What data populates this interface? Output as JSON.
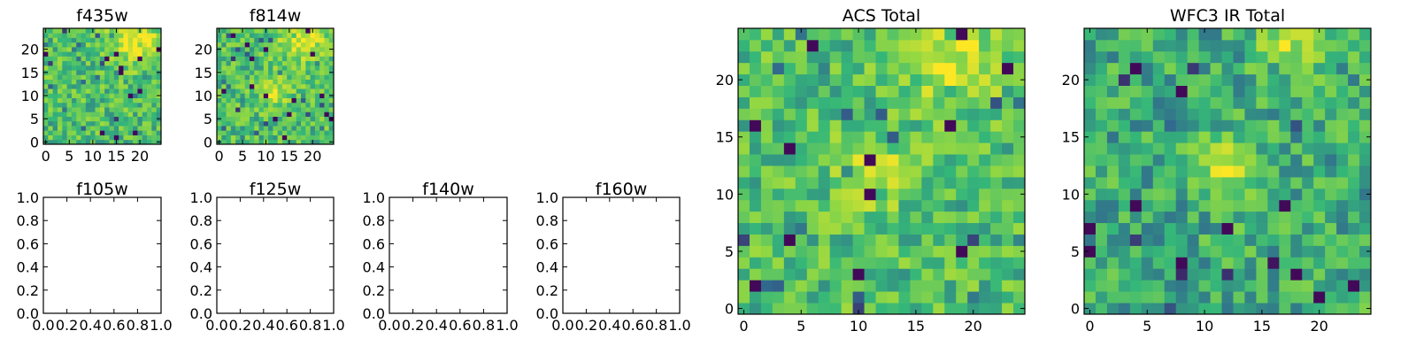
{
  "figure": {
    "colormap": [
      "#440154",
      "#31688e",
      "#35b779",
      "#90d743",
      "#fde725"
    ],
    "image_axes": {
      "f435w": {
        "title": "f435w",
        "xticks": [
          "0",
          "5",
          "10",
          "15",
          "20"
        ],
        "yticks": [
          "0",
          "5",
          "10",
          "15",
          "20"
        ]
      },
      "f814w": {
        "title": "f814w",
        "xticks": [
          "0",
          "5",
          "10",
          "15",
          "20"
        ],
        "yticks": [
          "0",
          "5",
          "10",
          "15",
          "20"
        ]
      },
      "acs_total": {
        "title": "ACS Total",
        "xticks": [
          "0",
          "5",
          "10",
          "15",
          "20"
        ],
        "yticks": [
          "0",
          "5",
          "10",
          "15",
          "20"
        ]
      },
      "wfc3_total": {
        "title": "WFC3 IR Total",
        "xticks": [
          "0",
          "5",
          "10",
          "15",
          "20"
        ],
        "yticks": [
          "0",
          "5",
          "10",
          "15",
          "20"
        ]
      }
    },
    "empty_axes": {
      "f105w": {
        "title": "f105w",
        "xticks": [
          "0.0",
          "0.2",
          "0.4",
          "0.6",
          "0.8",
          "1.0"
        ],
        "yticks": [
          "0.0",
          "0.2",
          "0.4",
          "0.6",
          "0.8",
          "1.0"
        ]
      },
      "f125w": {
        "title": "f125w",
        "xticks": [
          "0.0",
          "0.2",
          "0.4",
          "0.6",
          "0.8",
          "1.0"
        ],
        "yticks": [
          "0.0",
          "0.2",
          "0.4",
          "0.6",
          "0.8",
          "1.0"
        ]
      },
      "f140w": {
        "title": "f140w",
        "xticks": [
          "0.0",
          "0.2",
          "0.4",
          "0.6",
          "0.8",
          "1.0"
        ],
        "yticks": [
          "0.0",
          "0.2",
          "0.4",
          "0.6",
          "0.8",
          "1.0"
        ]
      },
      "f160w": {
        "title": "f160w",
        "xticks": [
          "0.0",
          "0.2",
          "0.4",
          "0.6",
          "0.8",
          "1.0"
        ],
        "yticks": [
          "0.0",
          "0.2",
          "0.4",
          "0.6",
          "0.8",
          "1.0"
        ]
      }
    }
  },
  "chart_data": [
    {
      "type": "heatmap",
      "title": "f435w",
      "grid_size": 25,
      "xlim": [
        -0.5,
        24.5
      ],
      "ylim": [
        -0.5,
        24.5
      ],
      "colormap": "viridis",
      "bright_region": "upper-right",
      "seed": 11
    },
    {
      "type": "heatmap",
      "title": "f814w",
      "grid_size": 25,
      "xlim": [
        -0.5,
        24.5
      ],
      "ylim": [
        -0.5,
        24.5
      ],
      "colormap": "viridis",
      "bright_region": "upper-right and center",
      "seed": 23
    },
    {
      "type": "empty",
      "title": "f105w",
      "xlim": [
        0,
        1
      ],
      "ylim": [
        0,
        1
      ]
    },
    {
      "type": "empty",
      "title": "f125w",
      "xlim": [
        0,
        1
      ],
      "ylim": [
        0,
        1
      ]
    },
    {
      "type": "empty",
      "title": "f140w",
      "xlim": [
        0,
        1
      ],
      "ylim": [
        0,
        1
      ]
    },
    {
      "type": "empty",
      "title": "f160w",
      "xlim": [
        0,
        1
      ],
      "ylim": [
        0,
        1
      ]
    },
    {
      "type": "heatmap",
      "title": "ACS Total",
      "grid_size": 25,
      "xlim": [
        -0.5,
        24.5
      ],
      "ylim": [
        -0.5,
        24.5
      ],
      "colormap": "viridis",
      "bright_region": "upper-right and center",
      "seed": 37
    },
    {
      "type": "heatmap",
      "title": "WFC3 IR Total",
      "grid_size": 25,
      "xlim": [
        -0.5,
        24.5
      ],
      "ylim": [
        -0.5,
        24.5
      ],
      "colormap": "viridis",
      "bright_region": "top-center and center",
      "seed": 53
    }
  ]
}
